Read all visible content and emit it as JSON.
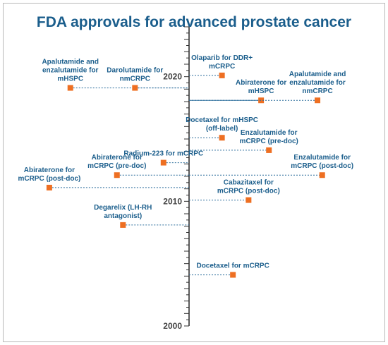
{
  "title": "FDA approvals for advanced prostate cancer",
  "axis": {
    "start": 2000,
    "end": 2024,
    "labeled_years": [
      2000,
      2010,
      2020
    ]
  },
  "events": [
    {
      "label": "Apalutamide and enzalutamide for mHSPC",
      "year": 2019.1,
      "side": "left",
      "offset": 0.79,
      "line": "dotted"
    },
    {
      "label": "Darolutamide for nmCRPC",
      "year": 2019.1,
      "side": "left",
      "offset": 0.36,
      "line": "dotted"
    },
    {
      "label": "Olaparib for DDR+ mCRPC",
      "year": 2020.1,
      "side": "right",
      "offset": 0.21,
      "line": "dotted"
    },
    {
      "label": "Abiraterone for mHSPC",
      "year": 2018.1,
      "side": "right",
      "offset": 0.46,
      "line": "solid"
    },
    {
      "label": "Apalutamide and enzalutamide for nmCRPC",
      "year": 2018.1,
      "side": "right",
      "offset": 0.82,
      "line": "dotted"
    },
    {
      "label": "Docetaxel for mHSPC (off-label)",
      "year": 2015.1,
      "side": "right",
      "offset": 0.21,
      "line": "dotted"
    },
    {
      "label": "Enzalutamide for mCRPC (pre-doc)",
      "year": 2014.1,
      "side": "right",
      "offset": 0.51,
      "line": "dotted"
    },
    {
      "label": "Radium-223 for mCRPC",
      "year": 2013.1,
      "side": "left",
      "offset": 0.17,
      "line": "dotted"
    },
    {
      "label": "Abiraterone for mCRPC (pre-doc)",
      "year": 2012.1,
      "side": "left",
      "offset": 0.48,
      "line": "dotted"
    },
    {
      "label": "Enzalutamide for mCRPC (post-doc)",
      "year": 2012.1,
      "side": "right",
      "offset": 0.85,
      "line": "dotted"
    },
    {
      "label": "Abiraterone for mCRPC (post-doc)",
      "year": 2011.1,
      "side": "left",
      "offset": 0.93,
      "line": "dotted"
    },
    {
      "label": "Cabazitaxel for mCRPC (post-doc)",
      "year": 2010.1,
      "side": "right",
      "offset": 0.38,
      "line": "dotted"
    },
    {
      "label": "Degarelix (LH-RH antagonist)",
      "year": 2008.1,
      "side": "left",
      "offset": 0.44,
      "line": "dotted"
    },
    {
      "label": "Docetaxel for mCRPC",
      "year": 2004.1,
      "side": "right",
      "offset": 0.28,
      "line": "dotted"
    }
  ],
  "colors": {
    "title": "#1b5e8c",
    "label": "#1b5e8c",
    "marker": "#ee6f22",
    "connector": "#2c6e9c",
    "axis": "#333333"
  }
}
